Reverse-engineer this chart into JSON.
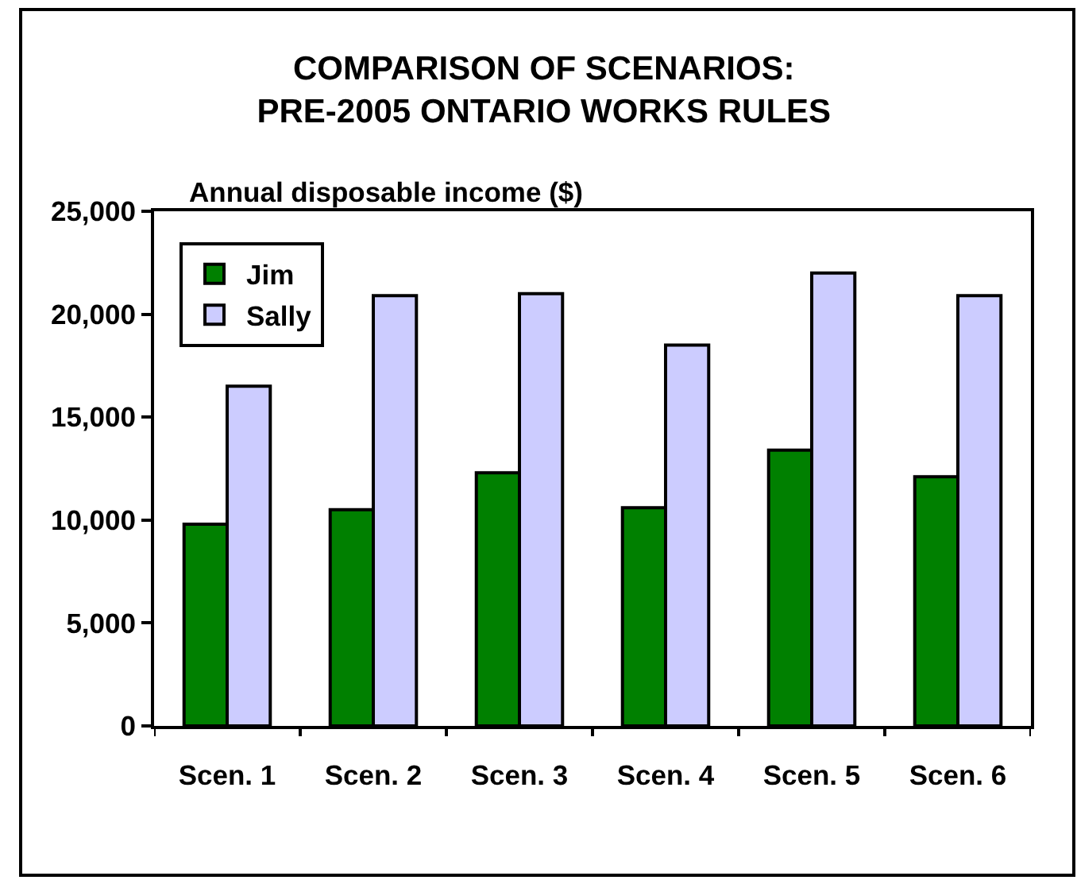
{
  "chart_data": {
    "type": "bar",
    "title": "COMPARISON OF SCENARIOS:\nPRE-2005 ONTARIO WORKS RULES",
    "ylabel": "Annual disposable income ($)",
    "categories": [
      "Scen. 1",
      "Scen. 2",
      "Scen. 3",
      "Scen. 4",
      "Scen. 5",
      "Scen. 6"
    ],
    "series": [
      {
        "name": "Jim",
        "color": "#008000",
        "values": [
          9800,
          10500,
          12300,
          10600,
          13400,
          12100
        ]
      },
      {
        "name": "Sally",
        "color": "#ccccff",
        "values": [
          16500,
          20900,
          21000,
          18500,
          22000,
          20900
        ]
      }
    ],
    "ylim": [
      0,
      25000
    ],
    "yticks": [
      0,
      {
        "value": 5000,
        "label": "5,000"
      },
      {
        "value": 10000,
        "label": "10,000"
      },
      {
        "value": 15000,
        "label": "15,000"
      },
      {
        "value": 20000,
        "label": "20,000"
      },
      {
        "value": 25000,
        "label": "25,000"
      }
    ],
    "legend": "top left",
    "grid": false
  }
}
